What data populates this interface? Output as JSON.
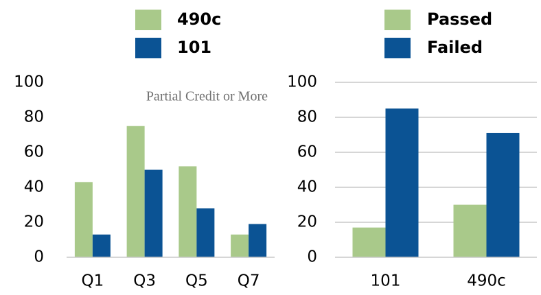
{
  "chart_data": [
    {
      "type": "bar",
      "annotation": "Partial Credit or More",
      "categories": [
        "Q1",
        "Q3",
        "Q5",
        "Q7"
      ],
      "series": [
        {
          "name": "490c",
          "color": "#a9c98a",
          "values": [
            43,
            75,
            52,
            13
          ]
        },
        {
          "name": "101",
          "color": "#0b5394",
          "values": [
            13,
            50,
            28,
            19
          ]
        }
      ],
      "ylim": [
        0,
        100
      ],
      "yticks": [
        0,
        20,
        40,
        60,
        80,
        100
      ],
      "grid": false
    },
    {
      "type": "bar",
      "categories": [
        "101",
        "490c"
      ],
      "series": [
        {
          "name": "Passed",
          "color": "#a9c98a",
          "values": [
            17,
            30
          ]
        },
        {
          "name": "Failed",
          "color": "#0b5394",
          "values": [
            85,
            71
          ]
        }
      ],
      "ylim": [
        0,
        100
      ],
      "yticks": [
        0,
        20,
        40,
        60,
        80,
        100
      ],
      "grid": true
    }
  ]
}
